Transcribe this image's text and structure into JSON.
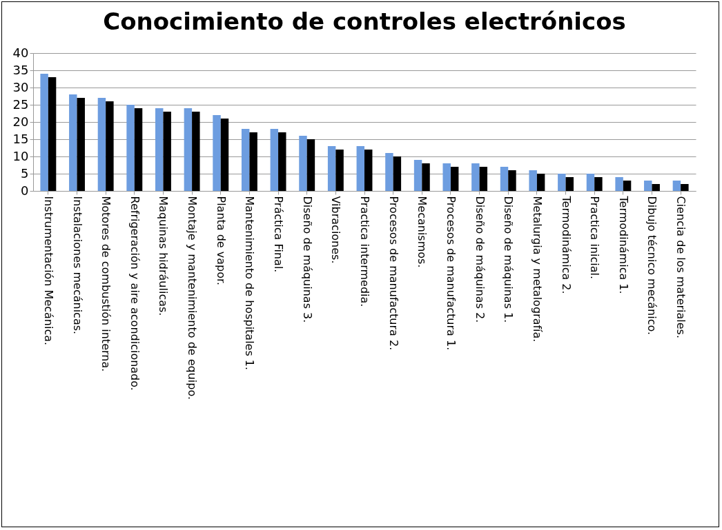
{
  "chart_data": {
    "type": "bar",
    "title": "Conocimiento de controles electrónicos",
    "categories": [
      "Instrumentación Mecánica.",
      "Instalaciones mecánicas.",
      "Motores de combustión interna.",
      "Refrigeración y aire acondicionado.",
      "Maquinas hidráulicas.",
      "Montaje y mantenimiento de equipo.",
      "Planta de vapor.",
      "Mantenimiento de hospitales 1.",
      "Práctica Final.",
      "Diseño de máquinas 3.",
      "Vibraciones.",
      "Practica intermedia.",
      "Procesos de manufactura 2.",
      "Mecanismos.",
      "Procesos de manufactura 1.",
      "Diseño de máquinas 2.",
      "Diseño de máquinas 1.",
      "Metalurgia y metalografía.",
      "Termodinámica 2.",
      "Practica inicial.",
      "Termodinámica 1.",
      "Dibujo técnico mecánico.",
      "Ciencia de los materiales."
    ],
    "series": [
      {
        "color": "#6d9de0",
        "values": [
          34,
          28,
          27,
          25,
          24,
          24,
          22,
          18,
          18,
          16,
          13,
          13,
          11,
          9,
          8,
          8,
          7,
          6,
          5,
          5,
          4,
          3,
          3
        ]
      },
      {
        "color": "#000000",
        "values": [
          33,
          27,
          26,
          24,
          23,
          23,
          21,
          17,
          17,
          15,
          12,
          12,
          10,
          8,
          7,
          7,
          6,
          5,
          4,
          4,
          3,
          2,
          2
        ]
      }
    ],
    "ylim": [
      0,
      40
    ],
    "yticks": [
      0,
      5,
      10,
      15,
      20,
      25,
      30,
      35,
      40
    ],
    "grid": "y",
    "legend": false
  }
}
